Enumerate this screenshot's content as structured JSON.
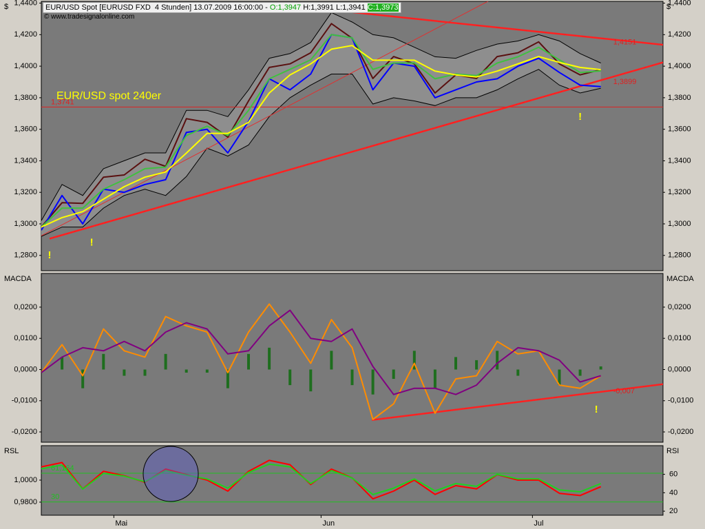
{
  "header": {
    "instrument": "EUR/USD Spot [EURUSD FXD  4 Stunden] 13.07.2009 16:00:00 -",
    "open": "O:1,3947",
    "high": "H:1,3991",
    "low": "L:1,3941",
    "close": "C:1,3973",
    "source": "© www.tradesignalonline.com"
  },
  "chart_data": [
    {
      "type": "line",
      "title": "EUR/USD spot 240er",
      "y_label": "$",
      "xlim": [
        0,
        300
      ],
      "ylim": [
        1.2703,
        1.4411
      ],
      "yticks": [
        {
          "value": 1.28,
          "label": "1,2800"
        },
        {
          "value": 1.3,
          "label": "1,3000"
        },
        {
          "value": 1.32,
          "label": "1,3200"
        },
        {
          "value": 1.34,
          "label": "1,3400"
        },
        {
          "value": 1.36,
          "label": "1,3600"
        },
        {
          "value": 1.38,
          "label": "1,3800"
        },
        {
          "value": 1.4,
          "label": "1,4000"
        },
        {
          "value": 1.42,
          "label": "1,4200"
        },
        {
          "value": 1.44,
          "label": "1,4400"
        }
      ],
      "x": [
        0,
        10,
        20,
        30,
        40,
        50,
        60,
        70,
        80,
        90,
        100,
        110,
        120,
        130,
        140,
        150,
        160,
        170,
        180,
        190,
        200,
        210,
        220,
        230,
        240,
        250,
        260,
        270
      ],
      "band": {
        "color": "#8e8e8e",
        "upper": [
          1.302,
          1.325,
          1.318,
          1.335,
          1.34,
          1.345,
          1.345,
          1.372,
          1.372,
          1.368,
          1.385,
          1.405,
          1.408,
          1.415,
          1.434,
          1.428,
          1.42,
          1.418,
          1.412,
          1.406,
          1.405,
          1.41,
          1.414,
          1.416,
          1.42,
          1.416,
          1.408,
          1.402
        ],
        "lower": [
          1.292,
          1.298,
          1.298,
          1.31,
          1.318,
          1.322,
          1.318,
          1.33,
          1.348,
          1.343,
          1.35,
          1.368,
          1.38,
          1.388,
          1.395,
          1.395,
          1.376,
          1.38,
          1.378,
          1.375,
          1.38,
          1.38,
          1.385,
          1.392,
          1.398,
          1.388,
          1.383,
          1.386
        ]
      },
      "series": [
        {
          "color": "#5a1010",
          "values": [
            1.298,
            1.3134,
            1.313,
            1.3296,
            1.331,
            1.341,
            1.3365,
            1.3667,
            1.3644,
            1.355,
            1.378,
            1.3992,
            1.4015,
            1.4085,
            1.427,
            1.4177,
            1.3922,
            1.4061,
            1.4015,
            1.383,
            1.3945,
            1.3922,
            1.4061,
            1.4085,
            1.4154,
            1.4015,
            1.3945,
            1.3978
          ]
        },
        {
          "color": "#0000ff",
          "values": [
            1.296,
            1.318,
            1.3,
            1.322,
            1.32,
            1.325,
            1.328,
            1.358,
            1.36,
            1.345,
            1.365,
            1.392,
            1.385,
            1.395,
            1.42,
            1.418,
            1.385,
            1.402,
            1.4,
            1.38,
            1.385,
            1.39,
            1.392,
            1.4,
            1.405,
            1.396,
            1.388,
            1.387
          ]
        },
        {
          "color": "#40c040",
          "values": [
            1.298,
            1.31,
            1.31,
            1.322,
            1.328,
            1.335,
            1.336,
            1.356,
            1.362,
            1.356,
            1.372,
            1.392,
            1.398,
            1.404,
            1.42,
            1.418,
            1.398,
            1.402,
            1.402,
            1.392,
            1.395,
            1.394,
            1.402,
            1.406,
            1.412,
            1.404,
            1.396,
            1.397
          ]
        },
        {
          "color": "#ffff00",
          "values": [
            1.298,
            1.304,
            1.3078,
            1.3157,
            1.3236,
            1.3296,
            1.3329,
            1.3449,
            1.3574,
            1.3574,
            1.3644,
            1.383,
            1.3945,
            1.4015,
            1.4108,
            1.4131,
            1.4038,
            1.4038,
            1.4038,
            1.3969,
            1.3945,
            1.3932,
            1.3969,
            1.4015,
            1.4061,
            1.4024,
            1.3992,
            1.3978
          ]
        }
      ],
      "lines": [
        {
          "color": "#ff2020",
          "x": [
            145,
            300
          ],
          "values": [
            1.4349,
            1.4136
          ]
        },
        {
          "color": "#ff2020",
          "x": [
            4,
            300
          ],
          "values": [
            1.2906,
            1.4024
          ]
        },
        {
          "color": "#e03030",
          "x": [
            0,
            232
          ],
          "values": [
            1.2925,
            1.4525
          ]
        }
      ],
      "hlines": [
        {
          "value": 1.3741,
          "label": "1,3741",
          "color": "#e02020"
        }
      ],
      "annotations": [
        {
          "text": "1,4151",
          "x": 276,
          "y": 1.4151,
          "color": "#e02020"
        },
        {
          "text": "1,3899",
          "x": 276,
          "y": 1.3899,
          "color": "#e02020"
        },
        {
          "text": "!",
          "x": 4,
          "y": 1.28,
          "color": "#ffff00"
        },
        {
          "text": "!",
          "x": 24.3,
          "y": 1.2879,
          "color": "#ffff00"
        },
        {
          "text": "!",
          "x": 260,
          "y": 1.3676,
          "color": "#ffff00"
        }
      ]
    },
    {
      "type": "line",
      "y_label": "MACDA",
      "xlim": [
        0,
        300
      ],
      "ylim": [
        -0.0233,
        0.0308
      ],
      "yticks": [
        {
          "value": -0.02,
          "label": "-0,0200"
        },
        {
          "value": -0.01,
          "label": "-0,0100"
        },
        {
          "value": 0,
          "label": "0,0000"
        },
        {
          "value": 0.01,
          "label": "0,0100"
        },
        {
          "value": 0.02,
          "label": "0,0200"
        }
      ],
      "x": [
        0,
        10,
        20,
        30,
        40,
        50,
        60,
        70,
        80,
        90,
        100,
        110,
        120,
        130,
        140,
        150,
        160,
        170,
        180,
        190,
        200,
        210,
        220,
        230,
        240,
        250,
        260,
        270
      ],
      "histogram": {
        "color": "#1e6e1e",
        "values": [
          0.0,
          0.004,
          -0.006,
          0.005,
          -0.002,
          -0.002,
          0.005,
          -0.001,
          -0.001,
          -0.006,
          0.005,
          0.007,
          -0.005,
          -0.007,
          0.006,
          -0.005,
          -0.008,
          -0.003,
          0.006,
          -0.006,
          0.004,
          0.003,
          0.006,
          -0.002,
          0.0,
          -0.005,
          -0.002,
          0.001
        ]
      },
      "series": [
        {
          "color": "#ff8c00",
          "values": [
            -0.001,
            0.008,
            -0.002,
            0.013,
            0.006,
            0.004,
            0.017,
            0.014,
            0.012,
            -0.001,
            0.012,
            0.021,
            0.012,
            0.002,
            0.016,
            0.007,
            -0.016,
            -0.011,
            0.002,
            -0.014,
            -0.003,
            -0.002,
            0.009,
            0.005,
            0.006,
            -0.005,
            -0.006,
            -0.002
          ]
        },
        {
          "color": "#800080",
          "values": [
            -0.001,
            0.004,
            0.007,
            0.006,
            0.009,
            0.006,
            0.012,
            0.015,
            0.013,
            0.005,
            0.006,
            0.014,
            0.019,
            0.01,
            0.009,
            0.013,
            0.001,
            -0.008,
            -0.006,
            -0.006,
            -0.008,
            -0.005,
            0.002,
            0.007,
            0.006,
            0.003,
            -0.004,
            -0.002
          ]
        }
      ],
      "lines": [
        {
          "color": "#ff2020",
          "x": [
            159.5,
            300
          ],
          "values": [
            -0.0162,
            -0.0047
          ]
        }
      ],
      "annotations": [
        {
          "text": "-0,007",
          "x": 276,
          "y": -0.007,
          "color": "#e02020"
        },
        {
          "text": "!",
          "x": 267.8,
          "y": -0.0129,
          "color": "#ffff00"
        }
      ]
    },
    {
      "type": "line",
      "y_label": "RSL",
      "y2_label": "RSI",
      "xlim": [
        0,
        300
      ],
      "ylim": [
        0.9681,
        1.0313
      ],
      "yticks": [
        {
          "value": 0.98,
          "label": "0,9800"
        },
        {
          "value": 1.0,
          "label": "1,0000"
        }
      ],
      "y2lim": [
        15.6,
        91.1
      ],
      "y2ticks": [
        20,
        40,
        60
      ],
      "xticks": [
        {
          "value": 35,
          "label": "Mai"
        },
        {
          "value": 135,
          "label": "Jun"
        },
        {
          "value": 237,
          "label": "Jul"
        }
      ],
      "x": [
        0,
        10,
        20,
        30,
        40,
        50,
        60,
        70,
        80,
        90,
        100,
        110,
        120,
        130,
        140,
        150,
        160,
        170,
        180,
        190,
        200,
        210,
        220,
        230,
        240,
        250,
        260,
        270
      ],
      "series": [
        {
          "color": "#ff0000",
          "values": [
            1.012,
            1.016,
            0.992,
            1.008,
            1.004,
            0.998,
            1.01,
            1.005,
            1.0,
            0.99,
            1.008,
            1.018,
            1.014,
            0.996,
            1.01,
            1.002,
            0.983,
            0.99,
            1.0,
            0.987,
            0.995,
            0.992,
            1.005,
            1.0,
            1.0,
            0.988,
            0.986,
            0.994
          ]
        },
        {
          "color": "#20d020",
          "axis": "y2",
          "values": [
            66,
            70,
            44,
            61,
            58,
            52,
            64,
            59,
            55,
            45,
            62,
            71,
            68,
            50,
            64,
            56,
            38,
            45,
            55,
            42,
            50,
            47,
            60,
            55,
            55,
            43,
            41,
            50
          ]
        }
      ],
      "hlines": [
        {
          "value": 61.164,
          "label": "61,164",
          "axis": "y2",
          "color": "#20c020"
        },
        {
          "value": 30,
          "label": "30",
          "axis": "y2",
          "color": "#20c020"
        }
      ]
    }
  ]
}
